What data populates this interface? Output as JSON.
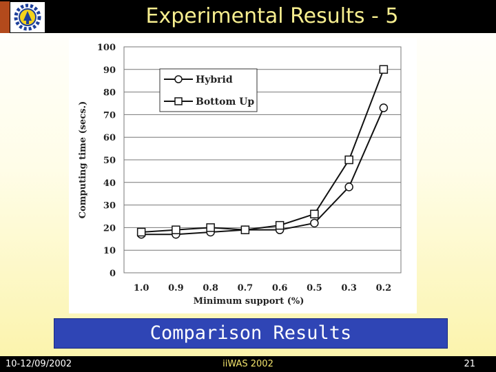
{
  "slide": {
    "title": "Experimental Results - 5",
    "caption": "Comparison Results"
  },
  "footer": {
    "date": "10-12/09/2002",
    "event": "iiWAS 2002",
    "page": "21"
  },
  "colors": {
    "title_bar": "#000000",
    "title_text": "#f7ee8f",
    "caption_box": "#2f45b5",
    "footer_event_text": "#f2e36b"
  },
  "chart_data": {
    "type": "line",
    "title": "",
    "xlabel": "Minimum support (%)",
    "ylabel": "Computing time (secs.)",
    "categories": [
      "1.0",
      "0.9",
      "0.8",
      "0.7",
      "0.6",
      "0.5",
      "0.3",
      "0.2"
    ],
    "ylim": [
      0,
      100
    ],
    "yticks": [
      0,
      10,
      20,
      30,
      40,
      50,
      60,
      70,
      80,
      90,
      100
    ],
    "grid": true,
    "legend_position": "top-left",
    "series": [
      {
        "name": "Hybrid",
        "marker": "circle",
        "values": [
          17,
          17,
          18,
          19,
          19,
          22,
          38,
          73
        ]
      },
      {
        "name": "Bottom Up",
        "marker": "square",
        "values": [
          18,
          19,
          20,
          19,
          21,
          26,
          50,
          90
        ]
      }
    ]
  }
}
